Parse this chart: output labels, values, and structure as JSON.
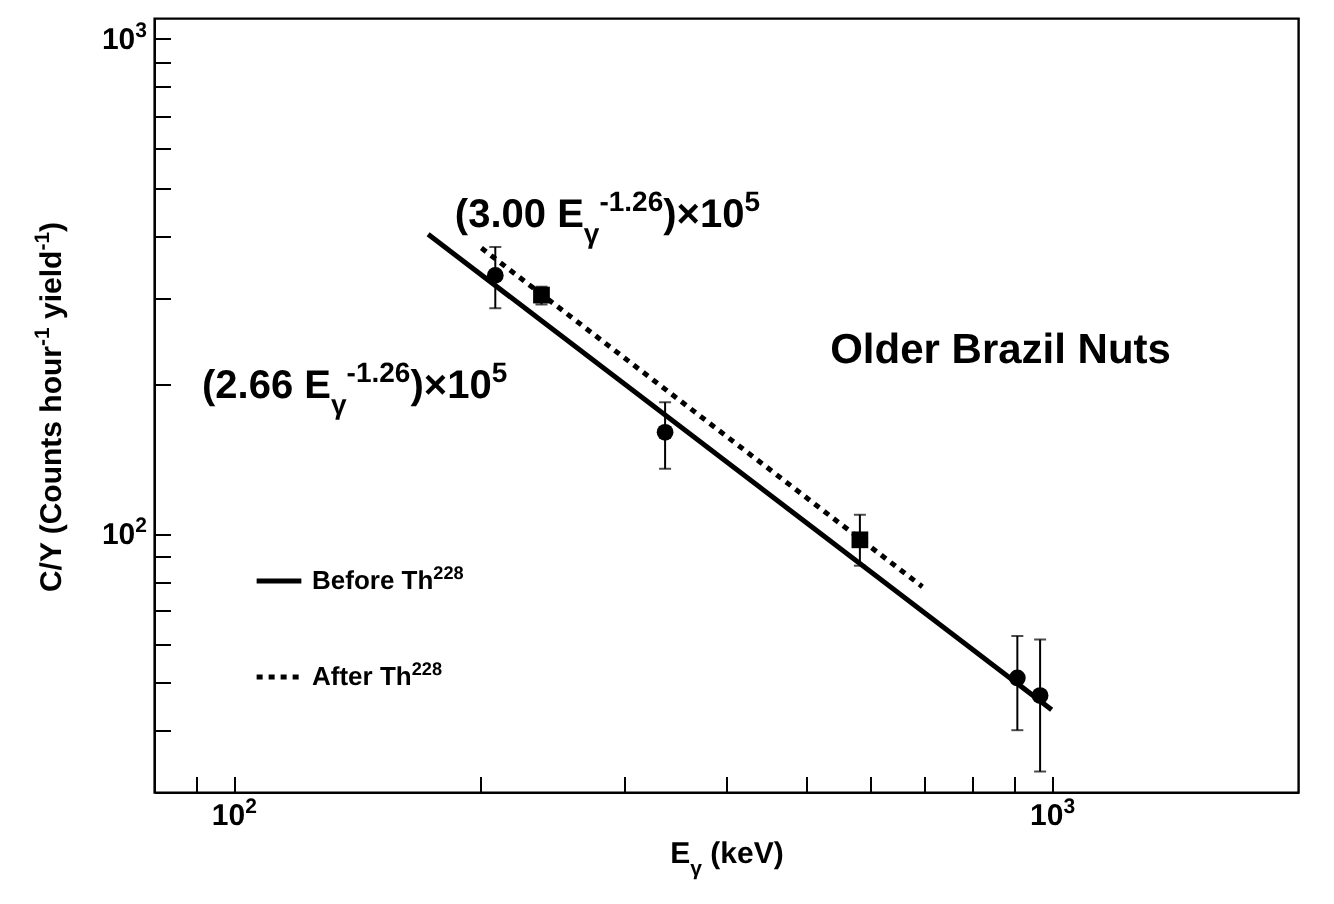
{
  "chart_data": {
    "type": "scatter",
    "xlabel": "E$_{γ}$ (keV)",
    "ylabel": "C/Y (Counts hour$^{-1}$ yield$^{-1}$)",
    "log": "xy",
    "grid": false,
    "legend": "bottom left",
    "xlim": [
      80,
      2000
    ],
    "ylim": [
      30,
      1100
    ],
    "xticks": [
      {
        "value": 90,
        "label": null
      },
      {
        "value": 100,
        "label": "10$^{2}$"
      },
      {
        "value": 200,
        "label": null
      },
      {
        "value": 300,
        "label": null
      },
      {
        "value": 400,
        "label": null
      },
      {
        "value": 500,
        "label": null
      },
      {
        "value": 600,
        "label": null
      },
      {
        "value": 700,
        "label": null
      },
      {
        "value": 800,
        "label": null
      },
      {
        "value": 900,
        "label": null
      },
      {
        "value": 1000,
        "label": "10$^{3}$"
      }
    ],
    "yticks": [
      {
        "value": 40,
        "label": null
      },
      {
        "value": 50,
        "label": null
      },
      {
        "value": 60,
        "label": null
      },
      {
        "value": 70,
        "label": null
      },
      {
        "value": 80,
        "label": null
      },
      {
        "value": 90,
        "label": null
      },
      {
        "value": 100,
        "label": "10$^{2}$"
      },
      {
        "value": 200,
        "label": null
      },
      {
        "value": 300,
        "label": null
      },
      {
        "value": 400,
        "label": null
      },
      {
        "value": 500,
        "label": null
      },
      {
        "value": 600,
        "label": null
      },
      {
        "value": 700,
        "label": null
      },
      {
        "value": 800,
        "label": null
      },
      {
        "value": 900,
        "label": null
      },
      {
        "value": 1000,
        "label": "10$^{3}$"
      }
    ],
    "annotations": [
      "(3.00 E$_{γ}$$^{-1.26}$)×10$^{5}$",
      "(2.66 E$_{γ}$$^{-1.26}$)×10$^{5}$",
      "Older Brazil Nuts"
    ],
    "series": [
      {
        "name": "Before Th$^{228}$",
        "type": "line",
        "color": "#000000",
        "line_style": "solid",
        "marker": "none",
        "x": [
          173,
          1000
        ],
        "values": [
          402,
          44
        ]
      },
      {
        "name": "After Th$^{228}$",
        "type": "line",
        "color": "#000000",
        "line_style": "dotted",
        "marker": "none",
        "x": [
          201,
          695
        ],
        "values": [
          377,
          78
        ]
      },
      {
        "color": "#000000",
        "marker": "circle",
        "x": [
          209,
          337,
          908,
          968
        ],
        "values": [
          332,
          160,
          51,
          47
        ],
        "errors": [
          [
            285,
            379
          ],
          [
            135,
            184
          ],
          [
            40,
            62
          ],
          [
            33,
            61
          ]
        ]
      },
      {
        "color": "#000000",
        "marker": "square",
        "x": [
          238,
          583
        ],
        "values": [
          303,
          97
        ],
        "errors": [
          [
            290,
            315
          ],
          [
            86,
            109
          ]
        ]
      }
    ]
  }
}
